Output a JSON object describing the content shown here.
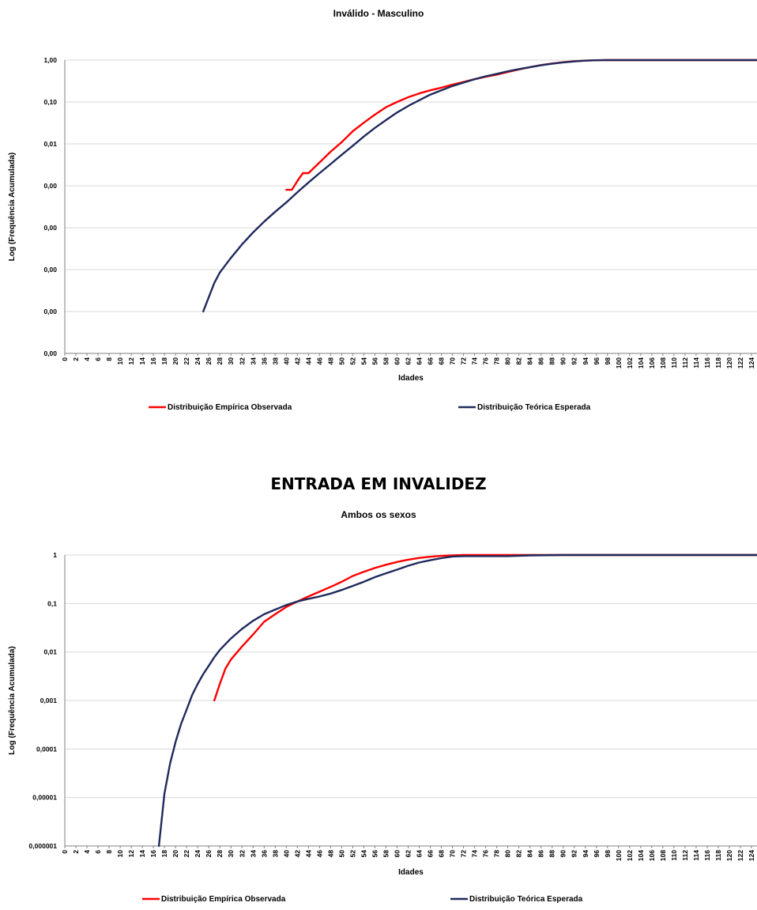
{
  "section_title": "ENTRADA EM INVALIDEZ",
  "chart_data": [
    {
      "type": "line",
      "title": "Inválido - Masculino",
      "xlabel": "Idades",
      "ylabel": "Log (Frequência Acumulada)",
      "y_scale": "log",
      "y_tick_labels": [
        "1,00",
        "0,10",
        "0,01",
        "0,00",
        "0,00",
        "0,00",
        "0,00",
        "0,00"
      ],
      "ylim": [
        1e-07,
        1
      ],
      "xlim": [
        0,
        125
      ],
      "x_tick_step": 2,
      "grid": "horizontal",
      "legend_position": "bottom",
      "series": [
        {
          "name": "Distribuição Empírica Observada",
          "color": "#ff0000",
          "x": [
            40,
            41,
            42,
            43,
            44,
            46,
            48,
            50,
            52,
            54,
            56,
            58,
            60,
            62,
            64,
            66,
            68,
            70,
            72,
            74,
            76,
            78,
            80,
            82,
            84,
            86,
            88,
            90,
            92,
            94,
            96,
            98,
            100,
            110,
            125
          ],
          "y": [
            0.0008,
            0.0008,
            0.0013,
            0.002,
            0.002,
            0.0036,
            0.0065,
            0.011,
            0.02,
            0.032,
            0.05,
            0.075,
            0.1,
            0.13,
            0.16,
            0.19,
            0.22,
            0.26,
            0.3,
            0.35,
            0.4,
            0.45,
            0.52,
            0.6,
            0.68,
            0.76,
            0.83,
            0.89,
            0.94,
            0.97,
            0.99,
            1.0,
            1.0,
            1.0,
            1.0
          ]
        },
        {
          "name": "Distribuição Teórica Esperada",
          "color": "#1f2a5c",
          "x": [
            25,
            26,
            27,
            28,
            30,
            32,
            34,
            36,
            38,
            40,
            42,
            44,
            46,
            48,
            50,
            52,
            54,
            56,
            58,
            60,
            62,
            64,
            66,
            68,
            70,
            72,
            74,
            76,
            78,
            80,
            82,
            84,
            86,
            88,
            90,
            92,
            94,
            96,
            98,
            100,
            110,
            125
          ],
          "y": [
            1e-06,
            2.2e-06,
            4.8e-06,
            8.5e-06,
            1.9e-05,
            4e-05,
            7.7e-05,
            0.00014,
            0.00024,
            0.0004,
            0.0007,
            0.0012,
            0.002,
            0.0033,
            0.0055,
            0.009,
            0.015,
            0.024,
            0.037,
            0.056,
            0.08,
            0.11,
            0.15,
            0.19,
            0.24,
            0.29,
            0.35,
            0.41,
            0.47,
            0.54,
            0.61,
            0.68,
            0.75,
            0.82,
            0.88,
            0.93,
            0.97,
            0.99,
            1.0,
            1.0,
            1.0,
            1.0
          ]
        }
      ]
    },
    {
      "type": "line",
      "title": "Ambos os sexos",
      "xlabel": "Idades",
      "ylabel": "Log (Frequência Acumulada)",
      "y_scale": "log",
      "y_tick_labels": [
        "1",
        "0,1",
        "0,01",
        "0,001",
        "0,0001",
        "0,00001",
        "0,000001"
      ],
      "ylim": [
        1e-06,
        1
      ],
      "xlim": [
        0,
        125
      ],
      "x_tick_step": 2,
      "grid": "horizontal",
      "legend_position": "bottom",
      "series": [
        {
          "name": "Distribuição Empírica Observada",
          "color": "#ff0000",
          "x": [
            27,
            28,
            29,
            30,
            32,
            34,
            36,
            38,
            40,
            42,
            44,
            46,
            48,
            50,
            52,
            54,
            56,
            58,
            60,
            62,
            64,
            66,
            68,
            70,
            72,
            80,
            90,
            100,
            125
          ],
          "y": [
            0.001,
            0.0022,
            0.0045,
            0.007,
            0.013,
            0.023,
            0.042,
            0.06,
            0.085,
            0.11,
            0.14,
            0.175,
            0.22,
            0.28,
            0.37,
            0.45,
            0.54,
            0.63,
            0.72,
            0.8,
            0.87,
            0.92,
            0.96,
            0.985,
            1.0,
            1.0,
            1.0,
            1.0,
            1.0
          ]
        },
        {
          "name": "Distribuição Teórica Esperada",
          "color": "#1f2a5c",
          "x": [
            17,
            18,
            19,
            20,
            21,
            22,
            23,
            24,
            25,
            26,
            27,
            28,
            30,
            32,
            34,
            36,
            38,
            40,
            42,
            44,
            46,
            48,
            50,
            52,
            54,
            56,
            58,
            60,
            62,
            64,
            66,
            68,
            70,
            72,
            76,
            80,
            84,
            90,
            100,
            125
          ],
          "y": [
            1e-06,
            1.2e-05,
            5e-05,
            0.00014,
            0.00033,
            0.00065,
            0.0013,
            0.0022,
            0.0035,
            0.0052,
            0.0078,
            0.011,
            0.019,
            0.03,
            0.044,
            0.06,
            0.075,
            0.093,
            0.11,
            0.125,
            0.14,
            0.16,
            0.19,
            0.23,
            0.28,
            0.35,
            0.42,
            0.5,
            0.6,
            0.7,
            0.78,
            0.86,
            0.93,
            0.95,
            0.95,
            0.95,
            0.98,
            1.0,
            1.0,
            1.0
          ]
        }
      ]
    }
  ]
}
